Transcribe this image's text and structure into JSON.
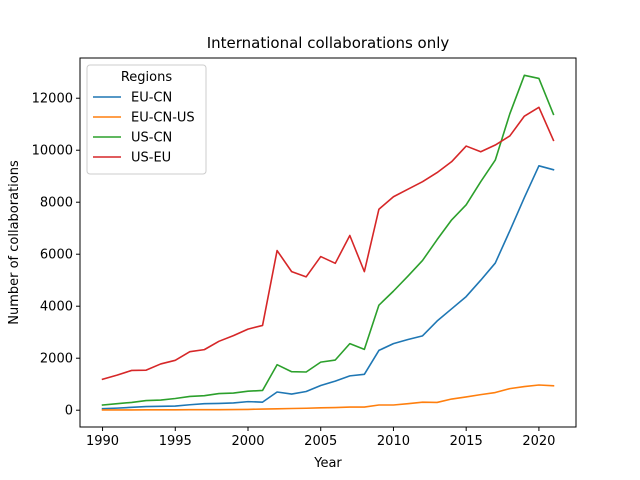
{
  "chart_data": {
    "type": "line",
    "title": "International collaborations only",
    "xlabel": "Year",
    "ylabel": "Number of collaborations",
    "xlim": [
      1988.45,
      2022.55
    ],
    "ylim": [
      -646,
      13547
    ],
    "xticks": [
      1990,
      1995,
      2000,
      2005,
      2010,
      2015,
      2020
    ],
    "yticks": [
      0,
      2000,
      4000,
      6000,
      8000,
      10000,
      12000
    ],
    "grid": false,
    "legend": {
      "title": "Regions",
      "placement": "top-left"
    },
    "x": [
      1990,
      1991,
      1992,
      1993,
      1994,
      1995,
      1996,
      1997,
      1998,
      1999,
      2000,
      2001,
      2002,
      2003,
      2004,
      2005,
      2006,
      2007,
      2008,
      2009,
      2010,
      2011,
      2012,
      2013,
      2014,
      2015,
      2016,
      2017,
      2018,
      2019,
      2020,
      2021
    ],
    "series": [
      {
        "name": "EU-CN",
        "color": "#1f77b4",
        "values": [
          60,
          80,
          110,
          140,
          150,
          160,
          210,
          250,
          260,
          280,
          330,
          310,
          700,
          620,
          720,
          950,
          1120,
          1320,
          1380,
          2300,
          2560,
          2720,
          2860,
          3430,
          3900,
          4370,
          5000,
          5660,
          6900,
          8180,
          9400,
          9250
        ]
      },
      {
        "name": "EU-CN-US",
        "color": "#ff7f0e",
        "values": [
          10,
          10,
          10,
          15,
          15,
          15,
          20,
          20,
          20,
          25,
          30,
          45,
          55,
          65,
          75,
          90,
          100,
          120,
          120,
          200,
          200,
          250,
          310,
          300,
          430,
          510,
          600,
          680,
          830,
          910,
          970,
          940
        ]
      },
      {
        "name": "US-CN",
        "color": "#2ca02c",
        "values": [
          200,
          250,
          300,
          370,
          390,
          450,
          530,
          560,
          640,
          660,
          730,
          760,
          1750,
          1480,
          1470,
          1850,
          1930,
          2560,
          2340,
          4040,
          4580,
          5160,
          5760,
          6560,
          7320,
          7900,
          8790,
          9620,
          11400,
          12880,
          12760,
          11380
        ]
      },
      {
        "name": "US-EU",
        "color": "#d62728",
        "values": [
          1190,
          1350,
          1530,
          1540,
          1780,
          1920,
          2250,
          2330,
          2650,
          2870,
          3120,
          3260,
          6140,
          5330,
          5130,
          5910,
          5650,
          6720,
          5330,
          7730,
          8210,
          8500,
          8790,
          9140,
          9560,
          10160,
          9940,
          10200,
          10550,
          11310,
          11650,
          10380
        ]
      }
    ]
  }
}
